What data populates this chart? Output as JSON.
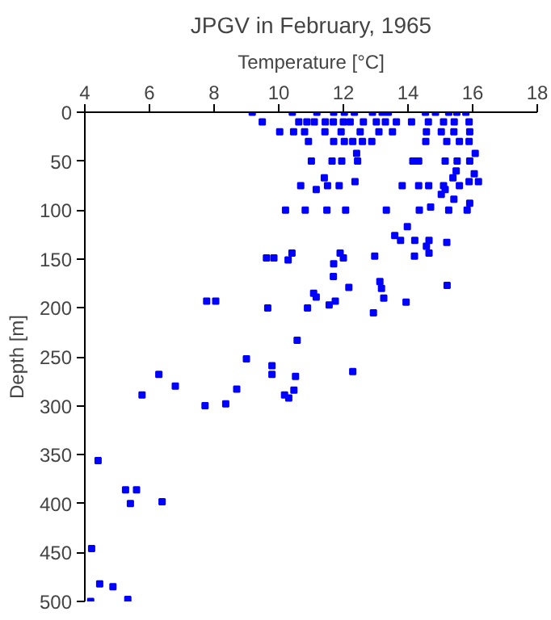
{
  "chart_data": {
    "type": "scatter",
    "title": "JPGV in February, 1965",
    "xlabel": "Temperature [°C]",
    "ylabel": "Depth [m]",
    "xlim": [
      4,
      18
    ],
    "xticks": [
      4,
      6,
      8,
      10,
      12,
      14,
      16,
      18
    ],
    "ylim": [
      500,
      0
    ],
    "yticks": [
      0,
      50,
      100,
      150,
      200,
      250,
      300,
      350,
      400,
      450,
      500
    ],
    "grid": false,
    "marker": "square",
    "series": [
      {
        "color": "#0000ff",
        "x": [
          9.18,
          10.42,
          11.18,
          11.7,
          12.03,
          12.34,
          12.9,
          13.2,
          13.39,
          14.54,
          14.85,
          15.26,
          15.51,
          15.79,
          9.49,
          10.62,
          10.87,
          11.1,
          11.44,
          11.69,
          12.0,
          12.21,
          12.62,
          13.02,
          13.3,
          13.64,
          14.11,
          14.63,
          15.1,
          15.43,
          15.89,
          10.03,
          10.46,
          10.8,
          11.43,
          11.93,
          12.52,
          13.1,
          13.52,
          14.57,
          15.03,
          15.42,
          15.91,
          10.92,
          11.7,
          12.03,
          12.29,
          12.59,
          12.88,
          14.55,
          15.2,
          15.59,
          15.89,
          12.41,
          16.08,
          11.01,
          11.65,
          11.95,
          12.44,
          14.15,
          14.33,
          15.15,
          15.52,
          15.91,
          15.49,
          16.05,
          11.41,
          15.39,
          12.36,
          15.89,
          16.18,
          10.68,
          11.51,
          11.87,
          13.82,
          14.33,
          14.64,
          15.1,
          15.59,
          11.16,
          15.15,
          15.03,
          15.42,
          15.91,
          14.7,
          10.21,
          10.82,
          11.49,
          12.07,
          13.33,
          14.35,
          15.26,
          15.83,
          13.98,
          13.59,
          14.21,
          14.65,
          13.77,
          15.2,
          14.57,
          10.41,
          11.9,
          14.65,
          14.2,
          12.97,
          9.62,
          9.85,
          12.0,
          10.29,
          11.7,
          11.69,
          11.08,
          11.16,
          12.17,
          13.13,
          13.18,
          13.25,
          15.21,
          13.94,
          12.93,
          11.75,
          11.56,
          10.89,
          9.66,
          7.77,
          8.05,
          10.57,
          9.0,
          9.79,
          9.79,
          10.52,
          12.29,
          6.29,
          6.8,
          5.77,
          8.7,
          10.47,
          10.18,
          10.31,
          7.72,
          8.36,
          4.41,
          5.26,
          5.6,
          5.41,
          6.39,
          4.21,
          4.46,
          4.87,
          5.33,
          4.18
        ],
        "values": [
          0,
          0,
          0,
          0,
          0,
          0,
          0,
          0,
          0,
          0,
          0,
          0,
          0,
          0,
          10,
          10,
          10,
          10,
          10,
          10,
          10,
          10,
          10,
          10,
          10,
          10,
          10,
          10,
          10,
          10,
          10,
          20,
          20,
          20,
          20,
          20,
          20,
          20,
          20,
          20,
          20,
          20,
          20,
          30,
          30,
          30,
          30,
          30,
          30,
          30,
          30,
          30,
          30,
          42,
          42,
          50,
          50,
          50,
          50,
          50,
          50,
          50,
          50,
          50,
          60,
          63,
          67,
          67,
          71,
          71,
          71,
          75,
          75,
          75,
          75,
          75,
          75,
          75,
          75,
          79,
          79,
          84,
          89,
          93,
          97,
          100,
          100,
          100,
          100,
          100,
          100,
          100,
          100,
          117,
          126,
          131,
          131,
          131,
          133,
          137,
          144,
          144,
          144,
          147,
          147,
          149,
          149,
          149,
          151,
          155,
          168,
          185,
          189,
          179,
          173,
          180,
          190,
          177,
          194,
          205,
          193,
          197,
          200,
          200,
          193,
          193,
          233,
          252,
          259,
          268,
          270,
          265,
          268,
          280,
          289,
          283,
          284,
          289,
          292,
          300,
          298,
          356,
          386,
          386,
          400,
          398,
          446,
          482,
          485,
          498,
          500
        ]
      }
    ]
  }
}
